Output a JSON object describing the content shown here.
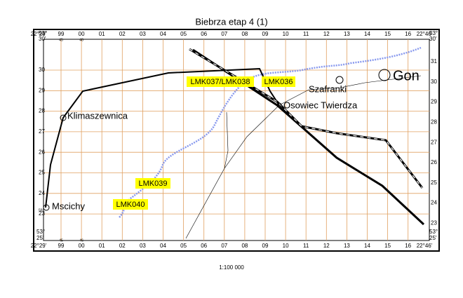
{
  "title": "Biebrza etap 4 (1)",
  "scale": "1:100 000",
  "top_labels": [
    "22°29'",
    "99",
    "00",
    "01",
    "02",
    "03",
    "04",
    "05",
    "06",
    "07",
    "08",
    "09",
    "10",
    "11",
    "12",
    "13",
    "14",
    "15",
    "16",
    "22°46'"
  ],
  "top_sub": [
    "45",
    "46"
  ],
  "bottom_labels": [
    "22°29'",
    "99",
    "00",
    "01",
    "02",
    "03",
    "04",
    "05",
    "06",
    "07",
    "08",
    "09",
    "10",
    "11",
    "12",
    "13",
    "14",
    "15",
    "16",
    "22°46'"
  ],
  "bottom_sub": [
    "45",
    "46"
  ],
  "left_labels": [
    "30",
    "29",
    "28",
    "27",
    "26",
    "25",
    "24",
    "23"
  ],
  "left_sub": "59",
  "right_labels": [
    "31",
    "30",
    "29",
    "28",
    "27",
    "26",
    "25",
    "24",
    "23"
  ],
  "corners": {
    "top_left": [
      "53°",
      "30'"
    ],
    "top_right": [
      "53°",
      "30'"
    ],
    "bottom_left": [
      "53°",
      "25'"
    ],
    "bottom_right": [
      "53°",
      "25'"
    ]
  },
  "places": [
    "Gon",
    "Szafranki",
    "Osowiec Twierdza",
    "Klimaszewnica",
    "Mscichy"
  ],
  "markers": [
    "LMK037/LMK038",
    "LMK036",
    "LMK039",
    "LMK040"
  ]
}
